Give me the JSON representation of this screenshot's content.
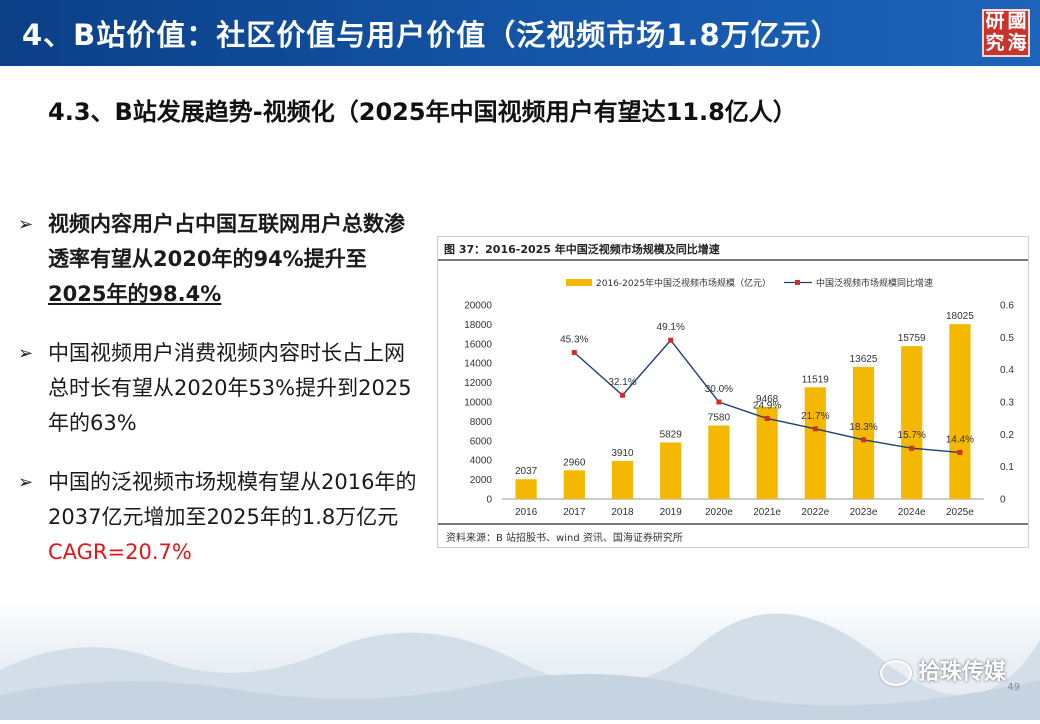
{
  "header": {
    "title": "4、B站价值：社区价值与用户价值（泛视频市场1.8万亿元）",
    "logo_text": [
      "研",
      "國",
      "究",
      "海"
    ]
  },
  "subtitle": "4.3、B站发展趋势-视频化（2025年中国视频用户有望达11.8亿人）",
  "bullets": {
    "b1": {
      "text1": "视频内容用户占中国互联网用户总数渗透率有望从2020年的94%提升至",
      "underlined": "2025年的98.4%"
    },
    "b2": {
      "text": "中国视频用户消费视频内容时长占上网总时长有望从2020年53%提升到2025年的63%"
    },
    "b3": {
      "text": "中国的泛视频市场规模有望从2016年的2037亿元增加至2025年的1.8万亿元",
      "highlight": "CAGR=20.7%"
    }
  },
  "chart_box": {
    "title": "图 37：2016-2025 年中国泛视频市场规模及同比增速",
    "source": "资料来源：B 站招股书、wind 资讯、国海证券研究所"
  },
  "chart_data": {
    "type": "bar",
    "categories": [
      "2016",
      "2017",
      "2018",
      "2019",
      "2020e",
      "2021e",
      "2022e",
      "2023e",
      "2024e",
      "2025e"
    ],
    "series": [
      {
        "name": "2016-2025年中国泛视频市场规模（亿元）",
        "type": "bar",
        "axis": "left",
        "values": [
          2037,
          2960,
          3910,
          5829,
          7580,
          9468,
          11519,
          13625,
          15759,
          18025
        ],
        "color": "#f5b800"
      },
      {
        "name": "中国泛视频市场规模同比增速",
        "type": "line",
        "axis": "right",
        "values": [
          null,
          0.453,
          0.321,
          0.491,
          0.3,
          0.249,
          0.217,
          0.183,
          0.157,
          0.144
        ],
        "labels": [
          null,
          "45.3%",
          "32.1%",
          "49.1%",
          "30.0%",
          "24.9%",
          "21.7%",
          "18.3%",
          "15.7%",
          "14.4%"
        ],
        "color": "#1f3f7a",
        "marker_color": "#d62b2b"
      }
    ],
    "ylim_left": [
      0,
      20000
    ],
    "yticks_left": [
      0,
      2000,
      4000,
      6000,
      8000,
      10000,
      12000,
      14000,
      16000,
      18000,
      20000
    ],
    "ylim_right": [
      0,
      0.6
    ],
    "yticks_right": [
      "0",
      "0.1",
      "0.2",
      "0.3",
      "0.4",
      "0.5",
      "0.6"
    ],
    "legend": "top-center",
    "grid": false
  },
  "footer": {
    "watermark": "拾珠传媒",
    "page": "49"
  }
}
